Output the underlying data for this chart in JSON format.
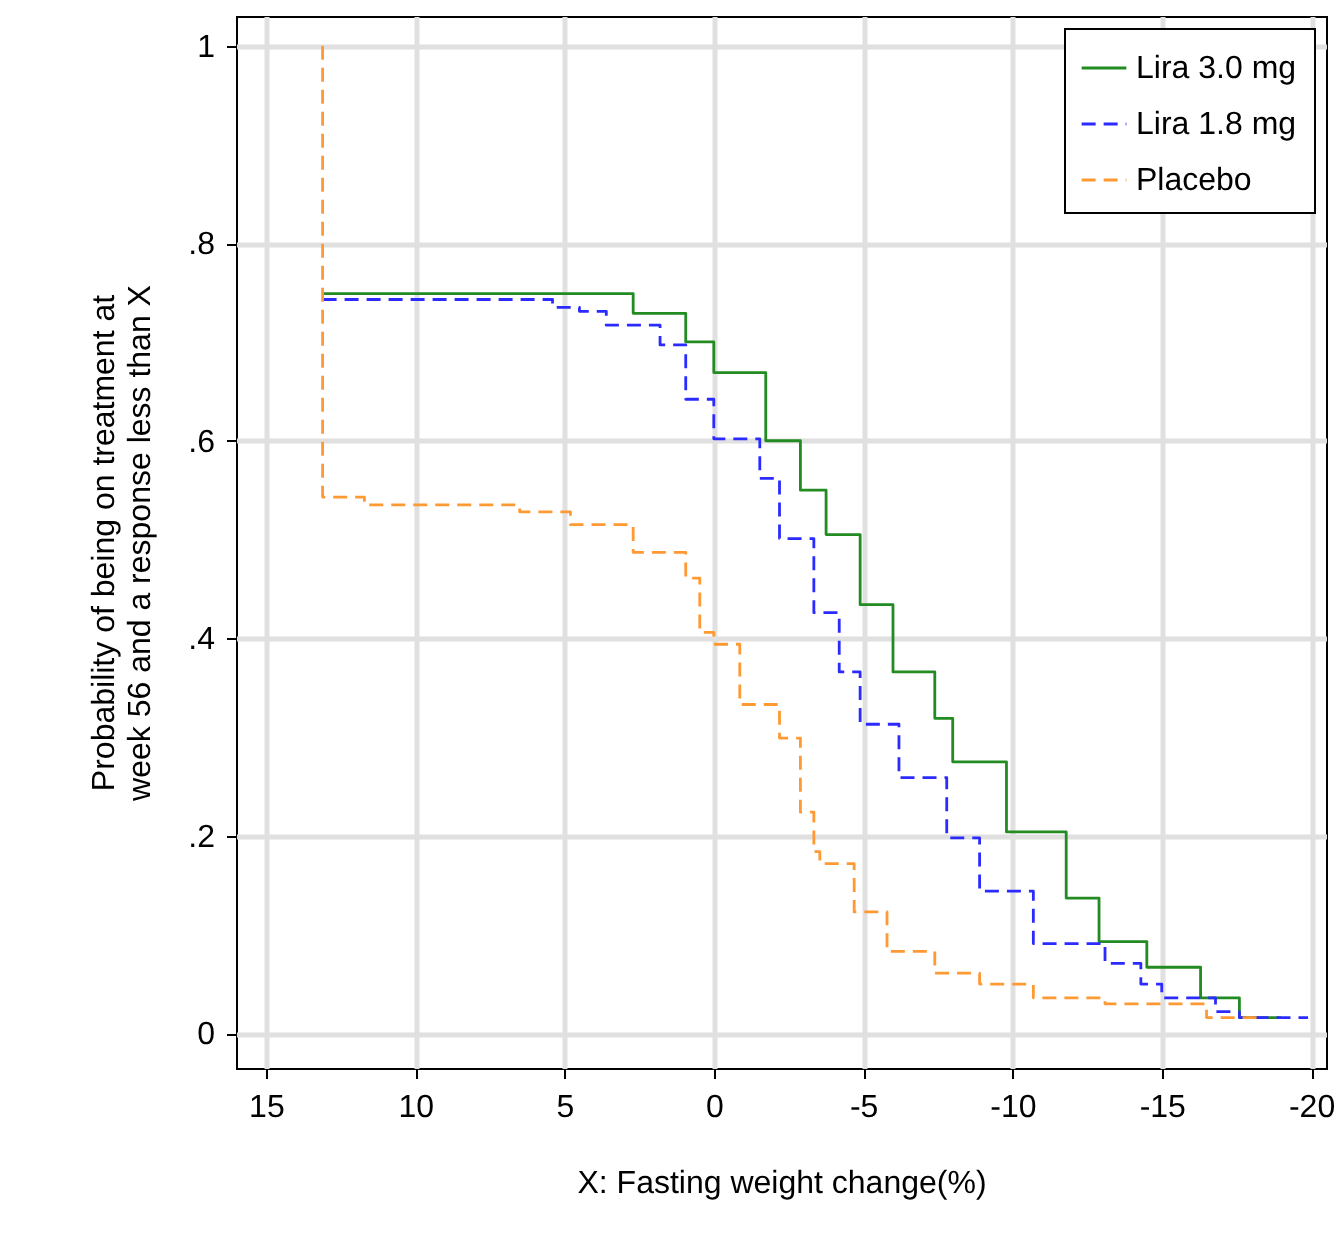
{
  "chart_data": {
    "type": "step",
    "xlabel": "X: Fasting weight change(%)",
    "ylabel": "Probability of being on treatment at week 56 and a response less than X",
    "xlim": [
      16,
      -20.5
    ],
    "ylim": [
      -0.035,
      1.03
    ],
    "xticks": [
      15,
      10,
      5,
      0,
      -5,
      -10,
      -15,
      -20
    ],
    "yticks": [
      0,
      {
        "value": 0.2,
        "label": ".2"
      },
      {
        "value": 0.4,
        "label": ".4"
      },
      {
        "value": 0.6,
        "label": ".6"
      },
      {
        "value": 0.8,
        "label": ".8"
      },
      1
    ],
    "grid": true,
    "legend": "top right",
    "marker": "none",
    "series": [
      {
        "name": "Lira 3.0 mg",
        "color": "#228b22",
        "line_style": "solid",
        "x": [
          13.1,
          4.5,
          2.7,
          0.94,
          0,
          -1.74,
          -2.9,
          -3.76,
          -4.9,
          -6.0,
          -7.4,
          -8.0,
          -9.8,
          -11.8,
          -12.9,
          -14.5,
          -16.3,
          -17.6,
          -19.0
        ],
        "values": [
          0.749,
          0.749,
          0.729,
          0.7,
          0.669,
          0.6,
          0.55,
          0.505,
          0.434,
          0.366,
          0.319,
          0.275,
          0.204,
          0.137,
          0.093,
          0.067,
          0.036,
          0.016,
          0.016
        ]
      },
      {
        "name": "Lira 1.8 mg",
        "color": "#2b2bff",
        "line_style": "dashed",
        "x": [
          13.1,
          7.0,
          5.4,
          4.5,
          3.6,
          1.8,
          0.94,
          0,
          -1.54,
          -2.2,
          -3.35,
          -4.2,
          -4.9,
          -6.2,
          -7.8,
          -8.9,
          -10.7,
          -13.1,
          -14.3,
          -15.0,
          -16.8,
          -17.6,
          -19.9
        ],
        "values": [
          0.743,
          0.743,
          0.735,
          0.731,
          0.717,
          0.697,
          0.642,
          0.602,
          0.562,
          0.501,
          0.426,
          0.366,
          0.313,
          0.259,
          0.198,
          0.144,
          0.091,
          0.071,
          0.05,
          0.036,
          0.022,
          0.016,
          0.016
        ]
      },
      {
        "name": "Placebo",
        "color": "#ff9933",
        "line_style": "dashed",
        "x": [
          13.1,
          13.1,
          11.7,
          6.5,
          4.8,
          3.4,
          2.7,
          0.94,
          0.47,
          0,
          -0.87,
          -2.2,
          -2.9,
          -3.35,
          -3.55,
          -4.7,
          -5.8,
          -7.4,
          -8.9,
          -10.7,
          -13.1,
          -16.5,
          -18.3
        ],
        "values": [
          1,
          0.543,
          0.535,
          0.528,
          0.515,
          0.515,
          0.487,
          0.461,
          0.406,
          0.394,
          0.333,
          0.299,
          0.224,
          0.184,
          0.172,
          0.123,
          0.083,
          0.061,
          0.05,
          0.036,
          0.03,
          0.016,
          0.016
        ]
      }
    ]
  }
}
